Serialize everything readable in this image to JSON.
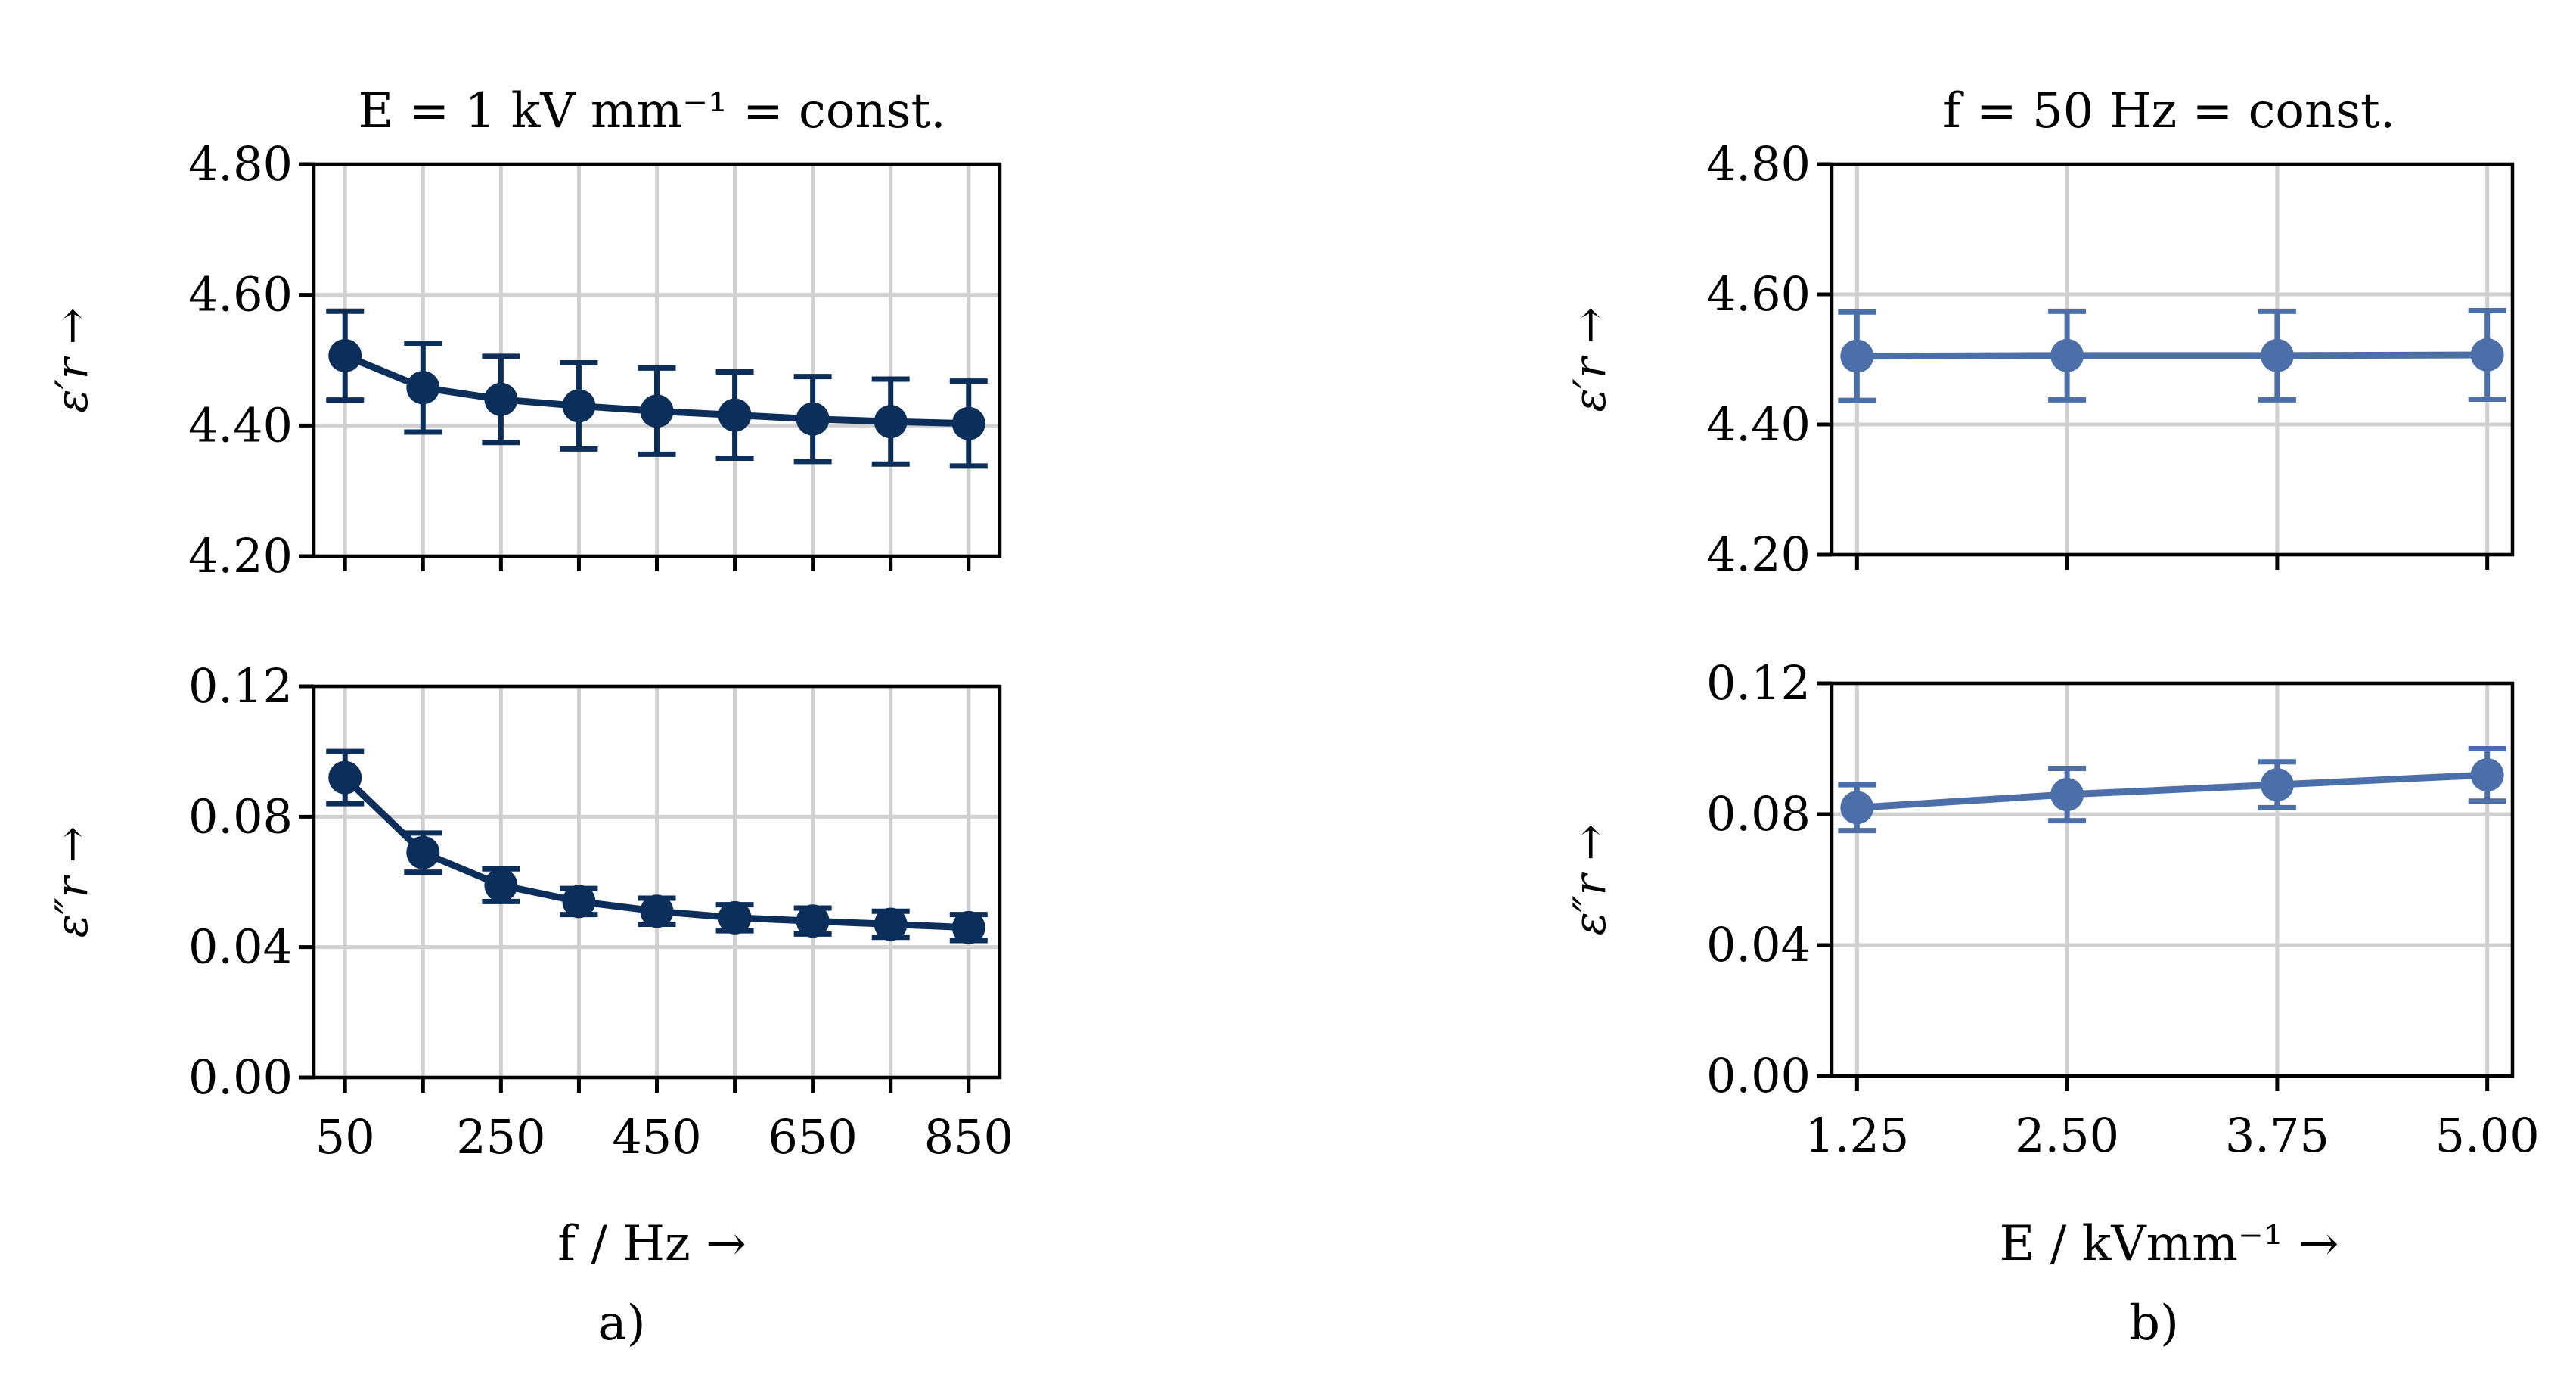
{
  "chart_data": [
    {
      "id": "a-top",
      "type": "line",
      "panel": "a)",
      "title": "E = 1 kV mm⁻¹ = const.",
      "xlabel": "",
      "ylabel": "ε′r →",
      "x": [
        50,
        150,
        250,
        350,
        450,
        550,
        650,
        750,
        850
      ],
      "y": [
        4.507,
        4.458,
        4.44,
        4.43,
        4.422,
        4.416,
        4.41,
        4.406,
        4.403
      ],
      "yerr": [
        0.068,
        0.068,
        0.066,
        0.066,
        0.066,
        0.066,
        0.065,
        0.065,
        0.065
      ],
      "xticks": [
        50,
        150,
        250,
        350,
        450,
        550,
        650,
        750,
        850
      ],
      "xlim": [
        10,
        890
      ],
      "yticks": [
        "4.20",
        "4.40",
        "4.60",
        "4.80"
      ],
      "ylim": [
        4.2,
        4.8
      ],
      "color": "#0b2e5a",
      "grid": true
    },
    {
      "id": "a-bottom",
      "type": "line",
      "panel": "a)",
      "title": "",
      "xlabel": "f / Hz →",
      "ylabel": "ε″r →",
      "x": [
        50,
        150,
        250,
        350,
        450,
        550,
        650,
        750,
        850
      ],
      "y": [
        0.092,
        0.069,
        0.059,
        0.054,
        0.051,
        0.049,
        0.048,
        0.047,
        0.046
      ],
      "yerr": [
        0.008,
        0.006,
        0.005,
        0.004,
        0.004,
        0.004,
        0.004,
        0.004,
        0.004
      ],
      "xticks": [
        50,
        150,
        250,
        350,
        450,
        550,
        650,
        750,
        850
      ],
      "xticklabels": [
        "50",
        "",
        "250",
        "",
        "450",
        "",
        "650",
        "",
        "850"
      ],
      "xlim": [
        10,
        890
      ],
      "yticks": [
        "0.00",
        "0.04",
        "0.08",
        "0.12"
      ],
      "ylim": [
        0.0,
        0.12
      ],
      "color": "#0b2e5a",
      "grid": true
    },
    {
      "id": "b-top",
      "type": "line",
      "panel": "b)",
      "title": "f = 50 Hz = const.",
      "xlabel": "",
      "ylabel": "ε′r →",
      "x": [
        1.25,
        2.5,
        3.75,
        5.0
      ],
      "y": [
        4.505,
        4.506,
        4.506,
        4.507
      ],
      "yerr": [
        0.068,
        0.068,
        0.068,
        0.068
      ],
      "xticks": [
        1.25,
        2.5,
        3.75,
        5.0
      ],
      "xlim": [
        1.1,
        5.15
      ],
      "yticks": [
        "4.20",
        "4.40",
        "4.60",
        "4.80"
      ],
      "ylim": [
        4.2,
        4.8
      ],
      "color": "#4c6fa9",
      "grid": true
    },
    {
      "id": "b-bottom",
      "type": "line",
      "panel": "b)",
      "title": "",
      "xlabel": "E / kVmm⁻¹ →",
      "ylabel": "ε″r →",
      "x": [
        1.25,
        2.5,
        3.75,
        5.0
      ],
      "y": [
        0.082,
        0.086,
        0.089,
        0.092
      ],
      "yerr": [
        0.007,
        0.008,
        0.007,
        0.008
      ],
      "xticks": [
        1.25,
        2.5,
        3.75,
        5.0
      ],
      "xticklabels": [
        "1.25",
        "2.50",
        "3.75",
        "5.00"
      ],
      "xlim": [
        1.1,
        5.15
      ],
      "yticks": [
        "0.00",
        "0.04",
        "0.08",
        "0.12"
      ],
      "ylim": [
        0.0,
        0.12
      ],
      "color": "#4c6fa9",
      "grid": true
    }
  ]
}
